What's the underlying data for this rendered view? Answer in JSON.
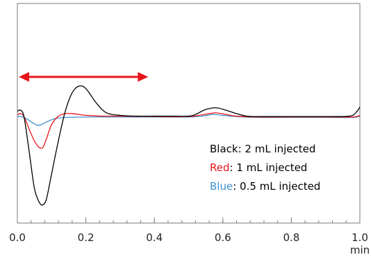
{
  "chart_data": {
    "type": "line",
    "title": "",
    "xlabel": "",
    "ylabel": "",
    "x_unit": "min",
    "xlim": [
      0.0,
      1.0
    ],
    "ylim": [
      -1.0,
      1.0
    ],
    "x_ticks": [
      {
        "value": 0.0,
        "label": "0.0"
      },
      {
        "value": 0.2,
        "label": "0.2"
      },
      {
        "value": 0.4,
        "label": "0.4"
      },
      {
        "value": 0.6,
        "label": "0.6"
      },
      {
        "value": 0.8,
        "label": "0.8"
      },
      {
        "value": 1.0,
        "label": "1.0"
      }
    ],
    "minor_tick_step": 0.04,
    "grid": false,
    "legend_placement": "bottom-right",
    "legend": [
      {
        "color_word": "Black",
        "text": ": 2 mL injected",
        "color": "#000000"
      },
      {
        "color_word": "Red",
        "text": ": 1 mL injected",
        "color": "#e8141a"
      },
      {
        "color_word": "Blue",
        "text": ": 0.5 mL injected",
        "color": "#3f93d2"
      }
    ],
    "annotations": [
      {
        "type": "double-arrow",
        "x_start": 0.0,
        "x_end": 0.38,
        "y": 0.51,
        "color": "#e8141a"
      }
    ],
    "series": [
      {
        "color": "#000000",
        "x": [
          0.0,
          0.01,
          0.02,
          0.035,
          0.05,
          0.065,
          0.075,
          0.085,
          0.1,
          0.12,
          0.14,
          0.16,
          0.18,
          0.2,
          0.23,
          0.26,
          0.3,
          0.35,
          0.4,
          0.45,
          0.5,
          0.52,
          0.55,
          0.58,
          0.61,
          0.64,
          0.67,
          0.7,
          0.8,
          0.9,
          0.97,
          0.99,
          1.0
        ],
        "y": [
          0.1,
          0.11,
          0.02,
          -0.4,
          -0.83,
          -1.0,
          -1.02,
          -0.95,
          -0.65,
          -0.25,
          0.1,
          0.32,
          0.4,
          0.37,
          0.2,
          0.08,
          0.05,
          0.04,
          0.04,
          0.04,
          0.04,
          0.06,
          0.12,
          0.14,
          0.11,
          0.07,
          0.04,
          0.035,
          0.035,
          0.035,
          0.04,
          0.09,
          0.15
        ]
      },
      {
        "color": "#e8141a",
        "x": [
          0.0,
          0.01,
          0.02,
          0.035,
          0.05,
          0.065,
          0.075,
          0.085,
          0.1,
          0.12,
          0.14,
          0.16,
          0.18,
          0.2,
          0.25,
          0.3,
          0.4,
          0.5,
          0.53,
          0.56,
          0.58,
          0.61,
          0.64,
          0.7,
          0.8,
          0.9,
          0.98,
          1.0
        ],
        "y": [
          0.06,
          0.07,
          0.03,
          -0.12,
          -0.26,
          -0.34,
          -0.33,
          -0.23,
          -0.06,
          0.04,
          0.07,
          0.07,
          0.06,
          0.05,
          0.04,
          0.04,
          0.035,
          0.035,
          0.05,
          0.07,
          0.08,
          0.06,
          0.04,
          0.03,
          0.03,
          0.03,
          0.03,
          0.05
        ]
      },
      {
        "color": "#3f93d2",
        "x": [
          0.0,
          0.015,
          0.03,
          0.045,
          0.06,
          0.075,
          0.09,
          0.11,
          0.14,
          0.2,
          0.3,
          0.4,
          0.5,
          0.54,
          0.57,
          0.6,
          0.64,
          0.7,
          0.8,
          0.9,
          0.98,
          1.0
        ],
        "y": [
          0.04,
          0.03,
          0.0,
          -0.04,
          -0.07,
          -0.05,
          -0.02,
          0.01,
          0.025,
          0.03,
          0.03,
          0.03,
          0.03,
          0.04,
          0.06,
          0.05,
          0.035,
          0.025,
          0.025,
          0.025,
          0.025,
          0.04
        ]
      }
    ]
  }
}
